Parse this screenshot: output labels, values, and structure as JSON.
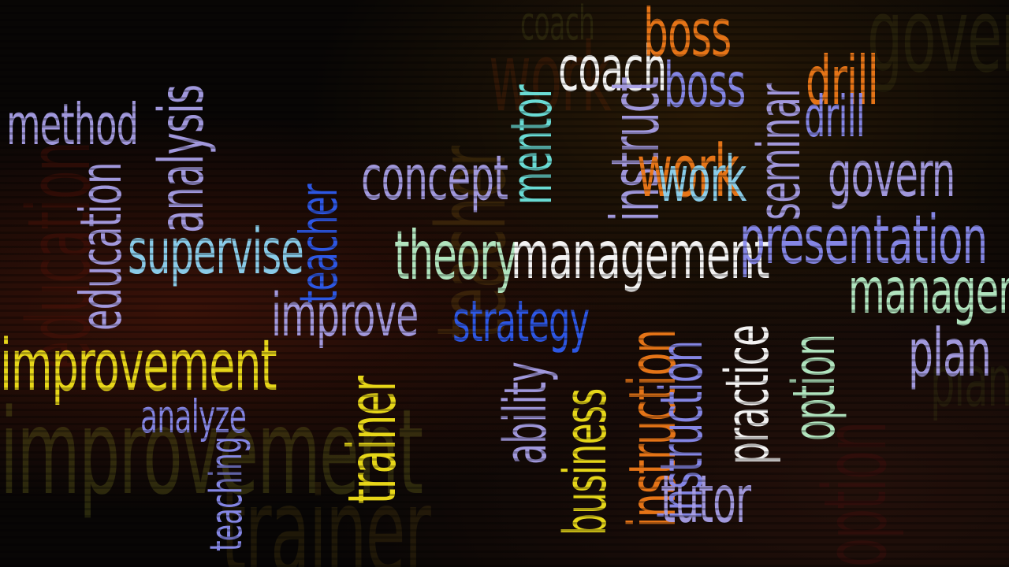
{
  "words": {
    "w0": "method",
    "w1": "education",
    "w2": "analysis",
    "w3": "supervise",
    "w4": "improvement",
    "w5": "analyze",
    "w6": "teacher",
    "w7": "improve",
    "w8": "trainer",
    "w9": "concept",
    "w10": "mentor",
    "w11": "theory",
    "w12": "management",
    "w13": "strategy",
    "w14": "ability",
    "w15": "business",
    "w16": "instruction",
    "w17": "tutor",
    "w18": "coach",
    "w19": "boss",
    "w20": "instruct",
    "w21": "work",
    "w22": "seminar",
    "w23": "drill",
    "w24": "govern",
    "w25": "presentation",
    "w26": "manager",
    "w27": "plan",
    "w28": "practice",
    "w29": "option",
    "w30": "teaching"
  },
  "background_words": {
    "b0": "improvement",
    "b1": "education",
    "b2": "teacher",
    "b3": "coach",
    "b4": "govern",
    "b5": "work",
    "b6": "option",
    "b7": "trainer",
    "b8": "plan"
  },
  "colors": {
    "lavender": "#a9a0e8",
    "periwinkle": "#8b8df0",
    "light_blue": "#8fd6f5",
    "cyan": "#6fe6e0",
    "mint": "#b9f0c8",
    "yellow": "#f2e11a",
    "orange": "#f07a18",
    "blue": "#2f5cf0",
    "olive": "#6b6a1c",
    "dark_red": "#5a1208"
  }
}
